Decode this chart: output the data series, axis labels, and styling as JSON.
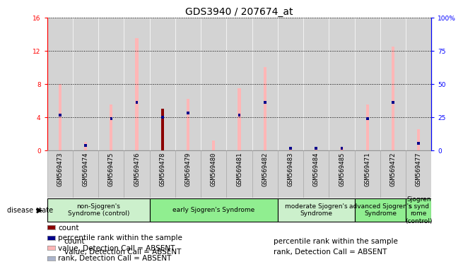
{
  "title": "GDS3940 / 207674_at",
  "samples": [
    "GSM569473",
    "GSM569474",
    "GSM569475",
    "GSM569476",
    "GSM569478",
    "GSM569479",
    "GSM569480",
    "GSM569481",
    "GSM569482",
    "GSM569483",
    "GSM569484",
    "GSM569485",
    "GSM569471",
    "GSM569472",
    "GSM569477"
  ],
  "count_values": [
    0,
    0,
    0,
    0,
    5,
    0,
    0,
    0,
    0,
    0,
    0,
    0,
    0,
    0,
    0
  ],
  "rank_values": [
    4.2,
    0.6,
    3.8,
    5.8,
    4.0,
    4.5,
    0.0,
    4.2,
    5.8,
    0.2,
    0.2,
    0.2,
    3.8,
    5.8,
    0.8
  ],
  "value_absent": [
    8.0,
    1.0,
    5.5,
    13.5,
    0.0,
    6.2,
    1.2,
    7.5,
    10.0,
    0.3,
    0.3,
    0.3,
    5.5,
    12.5,
    2.5
  ],
  "rank_absent": [
    4.2,
    0.6,
    3.8,
    5.8,
    0.0,
    4.5,
    0.0,
    4.2,
    5.8,
    0.2,
    0.2,
    0.2,
    3.8,
    5.8,
    0.8
  ],
  "disease_groups": [
    {
      "label": "non-Sjogren's\nSyndrome (control)",
      "start": 0,
      "end": 4,
      "color": "#ccf0cc"
    },
    {
      "label": "early Sjogren's Syndrome",
      "start": 4,
      "end": 9,
      "color": "#90ee90"
    },
    {
      "label": "moderate Sjogren's\nSyndrome",
      "start": 9,
      "end": 12,
      "color": "#ccf0cc"
    },
    {
      "label": "advanced Sjogren's\nSyndrome",
      "start": 12,
      "end": 14,
      "color": "#90ee90"
    },
    {
      "label": "Sjogren\ns synd\nrome\n(control)",
      "start": 14,
      "end": 15,
      "color": "#90ee90"
    }
  ],
  "ylim_left": [
    0,
    16
  ],
  "ylim_right": [
    0,
    100
  ],
  "yticks_left": [
    0,
    4,
    8,
    12,
    16
  ],
  "ytick_labels_left": [
    "0",
    "4",
    "8",
    "12",
    "16"
  ],
  "ytick_labels_right": [
    "0",
    "25",
    "50",
    "75",
    "100%"
  ],
  "color_count": "#8b0000",
  "color_rank": "#00008b",
  "color_value_absent": "#ffb6b6",
  "color_rank_absent": "#aab4cc",
  "bar_bg_color": "#d3d3d3",
  "col_border_color": "#aaaaaa",
  "title_fontsize": 10,
  "tick_fontsize": 6.5,
  "legend_fontsize": 7.5,
  "group_fontsize": 6.5
}
